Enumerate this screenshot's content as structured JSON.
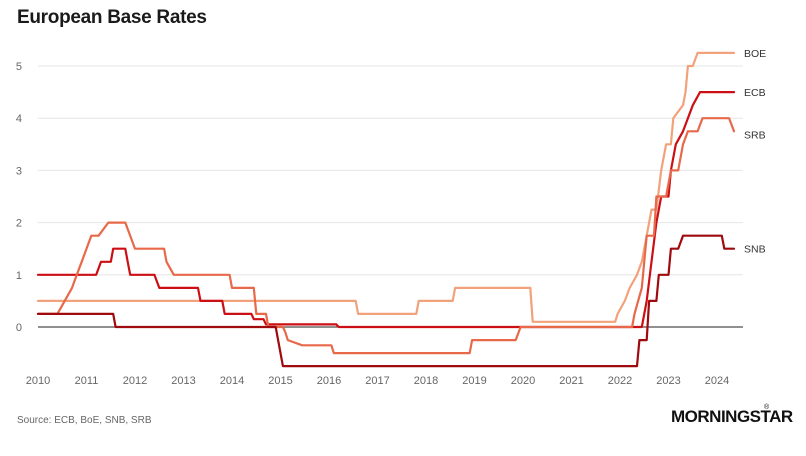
{
  "chart_data": {
    "type": "line",
    "title": "European Base Rates",
    "source": "Source: ECB, BoE, SNB, SRB",
    "xlim": [
      2010,
      2024.55
    ],
    "ylim": [
      -0.75,
      5.5
    ],
    "x_ticks": [
      2010,
      2011,
      2012,
      2013,
      2014,
      2015,
      2016,
      2017,
      2018,
      2019,
      2020,
      2021,
      2022,
      2023,
      2024
    ],
    "y_ticks": [
      0,
      1,
      2,
      3,
      4,
      5
    ],
    "grid": "horizontal",
    "zero_line": true,
    "series": [
      {
        "name": "BOE",
        "color": "#f2a27a",
        "points": [
          [
            2010,
            0.5
          ],
          [
            2016.55,
            0.5
          ],
          [
            2016.6,
            0.25
          ],
          [
            2017.8,
            0.25
          ],
          [
            2017.85,
            0.5
          ],
          [
            2018.55,
            0.5
          ],
          [
            2018.6,
            0.75
          ],
          [
            2020.15,
            0.75
          ],
          [
            2020.2,
            0.1
          ],
          [
            2021.9,
            0.1
          ],
          [
            2021.95,
            0.25
          ],
          [
            2022.1,
            0.5
          ],
          [
            2022.2,
            0.75
          ],
          [
            2022.35,
            1.0
          ],
          [
            2022.45,
            1.25
          ],
          [
            2022.55,
            1.75
          ],
          [
            2022.65,
            2.25
          ],
          [
            2022.75,
            2.25
          ],
          [
            2022.85,
            3.0
          ],
          [
            2022.95,
            3.5
          ],
          [
            2023.05,
            3.5
          ],
          [
            2023.1,
            4.0
          ],
          [
            2023.3,
            4.25
          ],
          [
            2023.35,
            4.5
          ],
          [
            2023.4,
            5.0
          ],
          [
            2023.5,
            5.0
          ],
          [
            2023.6,
            5.25
          ],
          [
            2024.35,
            5.25
          ]
        ]
      },
      {
        "name": "ECB",
        "color": "#cc0f14",
        "points": [
          [
            2010,
            1.0
          ],
          [
            2011.2,
            1.0
          ],
          [
            2011.3,
            1.25
          ],
          [
            2011.5,
            1.25
          ],
          [
            2011.55,
            1.5
          ],
          [
            2011.8,
            1.5
          ],
          [
            2011.85,
            1.25
          ],
          [
            2011.9,
            1.0
          ],
          [
            2012.4,
            1.0
          ],
          [
            2012.5,
            0.75
          ],
          [
            2013.3,
            0.75
          ],
          [
            2013.35,
            0.5
          ],
          [
            2013.8,
            0.5
          ],
          [
            2013.85,
            0.25
          ],
          [
            2014.4,
            0.25
          ],
          [
            2014.45,
            0.15
          ],
          [
            2014.65,
            0.15
          ],
          [
            2014.7,
            0.05
          ],
          [
            2016.15,
            0.05
          ],
          [
            2016.2,
            0.0
          ],
          [
            2022.45,
            0.0
          ],
          [
            2022.55,
            0.5
          ],
          [
            2022.65,
            1.25
          ],
          [
            2022.75,
            2.0
          ],
          [
            2022.85,
            2.5
          ],
          [
            2023.0,
            2.5
          ],
          [
            2023.05,
            3.0
          ],
          [
            2023.15,
            3.5
          ],
          [
            2023.3,
            3.75
          ],
          [
            2023.4,
            4.0
          ],
          [
            2023.5,
            4.25
          ],
          [
            2023.65,
            4.5
          ],
          [
            2024.35,
            4.5
          ]
        ]
      },
      {
        "name": "SRB",
        "color": "#e8694a",
        "points": [
          [
            2010,
            0.25
          ],
          [
            2010.4,
            0.25
          ],
          [
            2010.55,
            0.5
          ],
          [
            2010.7,
            0.75
          ],
          [
            2010.8,
            1.0
          ],
          [
            2010.9,
            1.25
          ],
          [
            2011.0,
            1.5
          ],
          [
            2011.1,
            1.75
          ],
          [
            2011.25,
            1.75
          ],
          [
            2011.45,
            2.0
          ],
          [
            2011.8,
            2.0
          ],
          [
            2011.9,
            1.75
          ],
          [
            2012.0,
            1.5
          ],
          [
            2012.6,
            1.5
          ],
          [
            2012.65,
            1.25
          ],
          [
            2012.8,
            1.0
          ],
          [
            2013.95,
            1.0
          ],
          [
            2014.0,
            0.75
          ],
          [
            2014.45,
            0.75
          ],
          [
            2014.5,
            0.25
          ],
          [
            2014.7,
            0.25
          ],
          [
            2014.75,
            0.0
          ],
          [
            2015.05,
            0.0
          ],
          [
            2015.1,
            -0.1
          ],
          [
            2015.15,
            -0.25
          ],
          [
            2015.45,
            -0.35
          ],
          [
            2016.05,
            -0.35
          ],
          [
            2016.1,
            -0.5
          ],
          [
            2018.9,
            -0.5
          ],
          [
            2018.95,
            -0.25
          ],
          [
            2019.85,
            -0.25
          ],
          [
            2019.95,
            0.0
          ],
          [
            2022.25,
            0.0
          ],
          [
            2022.3,
            0.25
          ],
          [
            2022.45,
            0.75
          ],
          [
            2022.55,
            1.75
          ],
          [
            2022.7,
            1.75
          ],
          [
            2022.75,
            2.5
          ],
          [
            2022.95,
            2.5
          ],
          [
            2023.05,
            3.0
          ],
          [
            2023.2,
            3.0
          ],
          [
            2023.3,
            3.5
          ],
          [
            2023.4,
            3.75
          ],
          [
            2023.6,
            3.75
          ],
          [
            2023.7,
            4.0
          ],
          [
            2024.25,
            4.0
          ],
          [
            2024.35,
            3.75
          ]
        ]
      },
      {
        "name": "SNB",
        "color": "#9e0a0e",
        "points": [
          [
            2010,
            0.25
          ],
          [
            2011.55,
            0.25
          ],
          [
            2011.6,
            0.0
          ],
          [
            2014.9,
            0.0
          ],
          [
            2014.95,
            -0.25
          ],
          [
            2015.05,
            -0.75
          ],
          [
            2022.35,
            -0.75
          ],
          [
            2022.4,
            -0.25
          ],
          [
            2022.55,
            -0.25
          ],
          [
            2022.6,
            0.5
          ],
          [
            2022.75,
            0.5
          ],
          [
            2022.8,
            1.0
          ],
          [
            2023.0,
            1.0
          ],
          [
            2023.05,
            1.5
          ],
          [
            2023.2,
            1.5
          ],
          [
            2023.3,
            1.75
          ],
          [
            2024.1,
            1.75
          ],
          [
            2024.15,
            1.5
          ],
          [
            2024.35,
            1.5
          ]
        ]
      }
    ]
  },
  "branding": {
    "logo_text": "MORNINGSTAR",
    "logo_mark": "®"
  }
}
